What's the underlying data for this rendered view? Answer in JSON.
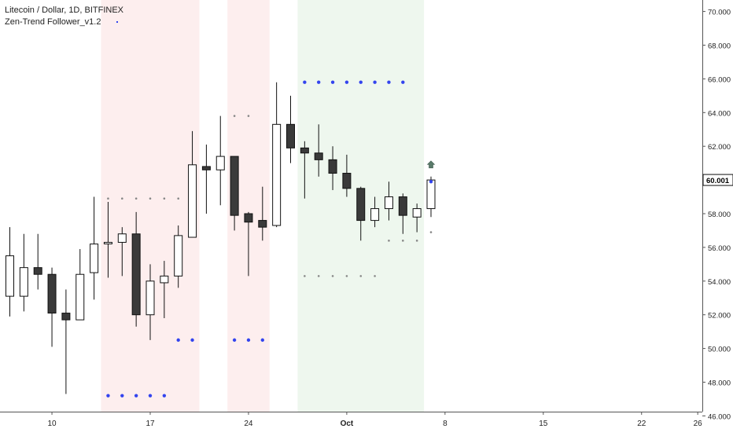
{
  "header": {
    "symbol_line": "Litecoin / Dollar, 1D, BITFINEX",
    "indicator_line": "Zen-Trend Follower_v1.2"
  },
  "chart_data": {
    "type": "candlestick",
    "title": "Litecoin / Dollar, 1D, BITFINEX",
    "indicator": "Zen-Trend Follower_v1.2",
    "y_axis": {
      "side": "right",
      "range": [
        46.0,
        71.0
      ],
      "ticks": [
        "46.000",
        "48.000",
        "50.000",
        "52.000",
        "54.000",
        "56.000",
        "58.000",
        "60.000",
        "62.000",
        "64.000",
        "66.000",
        "68.000",
        "70.000"
      ],
      "last_price_label": "60.001"
    },
    "x_axis": {
      "ticks": [
        {
          "label": "10",
          "day": 10
        },
        {
          "label": "17",
          "day": 17
        },
        {
          "label": "24",
          "day": 24
        },
        {
          "label": "Oct",
          "day": 31
        },
        {
          "label": "8",
          "day": 38
        },
        {
          "label": "15",
          "day": 45
        },
        {
          "label": "22",
          "day": 52
        },
        {
          "label": "26",
          "day": 56
        }
      ]
    },
    "candles": [
      {
        "day": 7,
        "open": 53.1,
        "high": 57.2,
        "low": 51.9,
        "close": 55.5
      },
      {
        "day": 8,
        "open": 53.1,
        "high": 56.8,
        "low": 52.2,
        "close": 54.8
      },
      {
        "day": 9,
        "open": 54.8,
        "high": 56.8,
        "low": 53.5,
        "close": 54.4
      },
      {
        "day": 10,
        "open": 54.4,
        "high": 54.8,
        "low": 50.1,
        "close": 52.1
      },
      {
        "day": 11,
        "open": 52.1,
        "high": 53.5,
        "low": 47.3,
        "close": 51.7
      },
      {
        "day": 12,
        "open": 51.7,
        "high": 55.9,
        "low": 51.7,
        "close": 54.4
      },
      {
        "day": 13,
        "open": 54.5,
        "high": 59.0,
        "low": 52.9,
        "close": 56.2
      },
      {
        "day": 14,
        "open": 56.3,
        "high": 58.7,
        "low": 54.2,
        "close": 56.3
      },
      {
        "day": 15,
        "open": 56.3,
        "high": 57.2,
        "low": 54.3,
        "close": 56.8
      },
      {
        "day": 16,
        "open": 56.8,
        "high": 58.1,
        "low": 51.3,
        "close": 52.0
      },
      {
        "day": 17,
        "open": 52.0,
        "high": 55.0,
        "low": 50.5,
        "close": 54.0
      },
      {
        "day": 18,
        "open": 53.9,
        "high": 55.2,
        "low": 51.8,
        "close": 54.3
      },
      {
        "day": 19,
        "open": 54.3,
        "high": 57.3,
        "low": 53.6,
        "close": 56.7
      },
      {
        "day": 20,
        "open": 56.6,
        "high": 62.9,
        "low": 56.6,
        "close": 60.9
      },
      {
        "day": 21,
        "open": 60.8,
        "high": 62.1,
        "low": 58.0,
        "close": 60.6
      },
      {
        "day": 22,
        "open": 60.6,
        "high": 63.8,
        "low": 58.5,
        "close": 61.4
      },
      {
        "day": 23,
        "open": 61.4,
        "high": 61.4,
        "low": 57.0,
        "close": 57.9
      },
      {
        "day": 24,
        "open": 58.0,
        "high": 58.1,
        "low": 54.3,
        "close": 57.5
      },
      {
        "day": 25,
        "open": 57.6,
        "high": 59.6,
        "low": 56.4,
        "close": 57.2
      },
      {
        "day": 26,
        "open": 57.3,
        "high": 65.8,
        "low": 57.2,
        "close": 63.3
      },
      {
        "day": 27,
        "open": 63.3,
        "high": 65.0,
        "low": 61.0,
        "close": 61.9
      },
      {
        "day": 28,
        "open": 61.9,
        "high": 62.3,
        "low": 58.9,
        "close": 61.6
      },
      {
        "day": 29,
        "open": 61.6,
        "high": 63.3,
        "low": 60.2,
        "close": 61.2
      },
      {
        "day": 30,
        "open": 61.2,
        "high": 62.0,
        "low": 59.4,
        "close": 60.4
      },
      {
        "day": 31,
        "open": 60.4,
        "high": 61.5,
        "low": 59.0,
        "close": 59.5
      },
      {
        "day": 32,
        "open": 59.5,
        "high": 59.6,
        "low": 56.4,
        "close": 57.6
      },
      {
        "day": 33,
        "open": 57.6,
        "high": 59.0,
        "low": 57.2,
        "close": 58.3
      },
      {
        "day": 34,
        "open": 58.3,
        "high": 59.9,
        "low": 57.6,
        "close": 59.0
      },
      {
        "day": 35,
        "open": 59.0,
        "high": 59.2,
        "low": 56.8,
        "close": 57.9
      },
      {
        "day": 36,
        "open": 57.8,
        "high": 58.6,
        "low": 56.9,
        "close": 58.3
      },
      {
        "day": 37,
        "open": 58.3,
        "high": 60.2,
        "low": 57.8,
        "close": 60.0
      }
    ],
    "shaded_regions": [
      {
        "from_day": 13.5,
        "to_day": 20.5,
        "color": "#fdeeee"
      },
      {
        "from_day": 22.5,
        "to_day": 25.5,
        "color": "#fdeeee"
      },
      {
        "from_day": 27.5,
        "to_day": 36.5,
        "color": "#eef7ee"
      }
    ],
    "dot_series": [
      {
        "color": "#3344ee",
        "size": 2.2,
        "points": [
          [
            14,
            47.2
          ],
          [
            15,
            47.2
          ],
          [
            16,
            47.2
          ],
          [
            17,
            47.2
          ],
          [
            18,
            47.2
          ],
          [
            19,
            50.5
          ],
          [
            20,
            50.5
          ],
          [
            23,
            50.5
          ],
          [
            24,
            50.5
          ],
          [
            25,
            50.5
          ],
          [
            28,
            65.8
          ],
          [
            29,
            65.8
          ],
          [
            30,
            65.8
          ],
          [
            31,
            65.8
          ],
          [
            32,
            65.8
          ],
          [
            33,
            65.8
          ],
          [
            34,
            65.8
          ],
          [
            35,
            65.8
          ],
          [
            37,
            59.9
          ]
        ]
      },
      {
        "color": "#888888",
        "size": 1.3,
        "points": [
          [
            14,
            58.9
          ],
          [
            15,
            58.9
          ],
          [
            16,
            58.9
          ],
          [
            17,
            58.9
          ],
          [
            18,
            58.9
          ],
          [
            19,
            58.9
          ],
          [
            23,
            63.8
          ],
          [
            24,
            63.8
          ],
          [
            28,
            54.3
          ],
          [
            29,
            54.3
          ],
          [
            30,
            54.3
          ],
          [
            31,
            54.3
          ],
          [
            32,
            54.3
          ],
          [
            33,
            54.3
          ],
          [
            34,
            56.4
          ],
          [
            35,
            56.4
          ],
          [
            36,
            56.4
          ],
          [
            37,
            56.9
          ]
        ]
      }
    ],
    "signal_arrow": {
      "day": 37,
      "price": 60.9,
      "direction": "up",
      "color": "#5a7a6a"
    },
    "legend_marker_color": "#3344ee",
    "grid": false
  }
}
